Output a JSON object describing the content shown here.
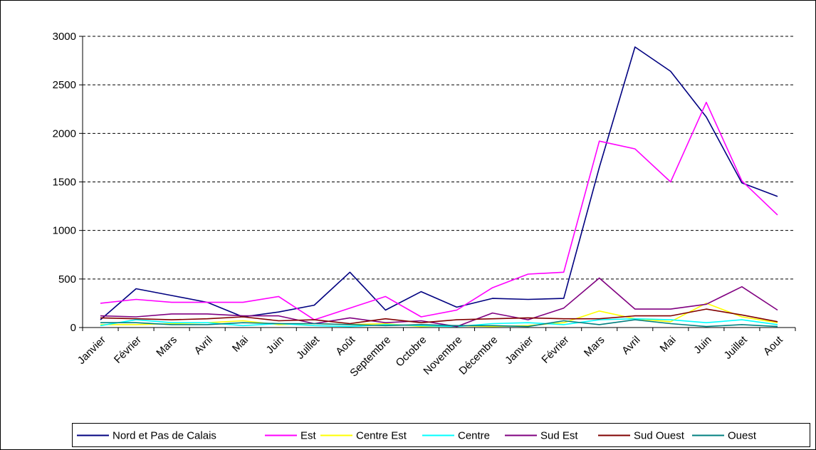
{
  "chart_data": {
    "type": "line",
    "title": "",
    "xlabel": "",
    "ylabel": "",
    "ylim": [
      0,
      3000
    ],
    "yticks": [
      0,
      500,
      1000,
      1500,
      2000,
      2500,
      3000
    ],
    "grid": "horizontal-dashed",
    "legend_position": "bottom",
    "categories": [
      "Janvier",
      "Février",
      "Mars",
      "Avril",
      "Mai",
      "Juin",
      "Juillet",
      "Août",
      "Septembre",
      "Octobre",
      "Novembre",
      "Décembre",
      "Janvier",
      "Février",
      "Mars",
      "Avril",
      "Mai",
      "Juin",
      "Juillet",
      "Aout"
    ],
    "series": [
      {
        "name": "Nord et Pas de Calais",
        "color": "#000080",
        "values": [
          80,
          400,
          330,
          260,
          110,
          160,
          230,
          570,
          180,
          370,
          210,
          300,
          290,
          300,
          1650,
          2890,
          2640,
          2170,
          1490,
          1350
        ]
      },
      {
        "name": "Est",
        "color": "#ff00ff",
        "values": [
          250,
          290,
          260,
          260,
          260,
          320,
          80,
          200,
          320,
          110,
          180,
          410,
          550,
          570,
          1920,
          1840,
          1500,
          2320,
          1510,
          1160
        ]
      },
      {
        "name": "Centre Est",
        "color": "#ffff00",
        "values": [
          30,
          30,
          40,
          50,
          70,
          30,
          40,
          30,
          40,
          10,
          20,
          10,
          20,
          50,
          170,
          90,
          60,
          250,
          110,
          50
        ]
      },
      {
        "name": "Centre",
        "color": "#00ffff",
        "values": [
          20,
          80,
          50,
          50,
          20,
          40,
          20,
          10,
          30,
          20,
          10,
          40,
          50,
          30,
          80,
          90,
          80,
          50,
          80,
          30
        ]
      },
      {
        "name": "Sud Est",
        "color": "#800080",
        "values": [
          120,
          110,
          140,
          140,
          120,
          120,
          40,
          100,
          50,
          70,
          10,
          150,
          80,
          200,
          510,
          190,
          190,
          240,
          420,
          180
        ]
      },
      {
        "name": "Sud Ouest",
        "color": "#800000",
        "values": [
          100,
          90,
          80,
          90,
          110,
          70,
          80,
          40,
          90,
          50,
          80,
          90,
          100,
          90,
          90,
          120,
          120,
          190,
          130,
          60
        ]
      },
      {
        "name": "Ouest",
        "color": "#008080",
        "values": [
          50,
          50,
          30,
          30,
          50,
          40,
          40,
          30,
          20,
          30,
          20,
          20,
          10,
          70,
          30,
          80,
          40,
          10,
          30,
          10
        ]
      }
    ]
  }
}
